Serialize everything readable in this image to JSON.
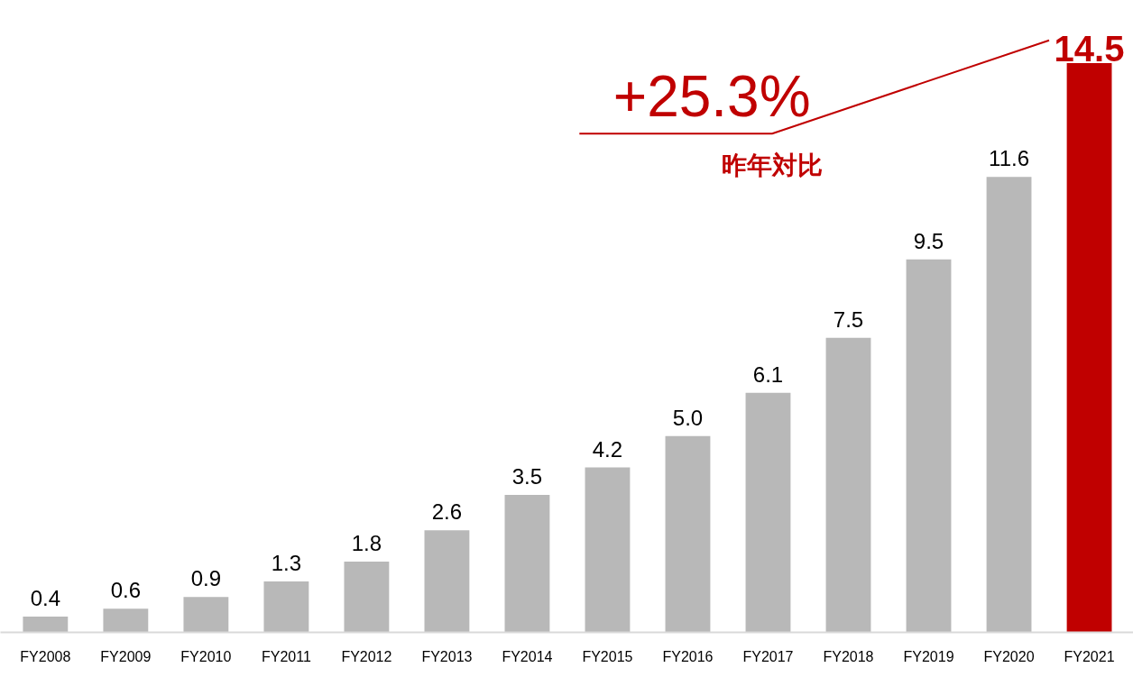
{
  "chart_data": {
    "type": "bar",
    "categories": [
      "FY2008",
      "FY2009",
      "FY2010",
      "FY2011",
      "FY2012",
      "FY2013",
      "FY2014",
      "FY2015",
      "FY2016",
      "FY2017",
      "FY2018",
      "FY2019",
      "FY2020",
      "FY2021"
    ],
    "values": [
      0.4,
      0.6,
      0.9,
      1.3,
      1.8,
      2.6,
      3.5,
      4.2,
      5.0,
      6.1,
      7.5,
      9.5,
      11.6,
      14.5
    ],
    "colors": [
      "#b8b8b8",
      "#b8b8b8",
      "#b8b8b8",
      "#b8b8b8",
      "#b8b8b8",
      "#b8b8b8",
      "#b8b8b8",
      "#b8b8b8",
      "#b8b8b8",
      "#b8b8b8",
      "#b8b8b8",
      "#b8b8b8",
      "#b8b8b8",
      "#c00000"
    ],
    "value_labels": [
      "0.4",
      "0.6",
      "0.9",
      "1.3",
      "1.8",
      "2.6",
      "3.5",
      "4.2",
      "5.0",
      "6.1",
      "7.5",
      "9.5",
      "11.6",
      "14.5"
    ],
    "annotations": [
      "+25.3%",
      "昨年対比"
    ],
    "grid": false
  }
}
